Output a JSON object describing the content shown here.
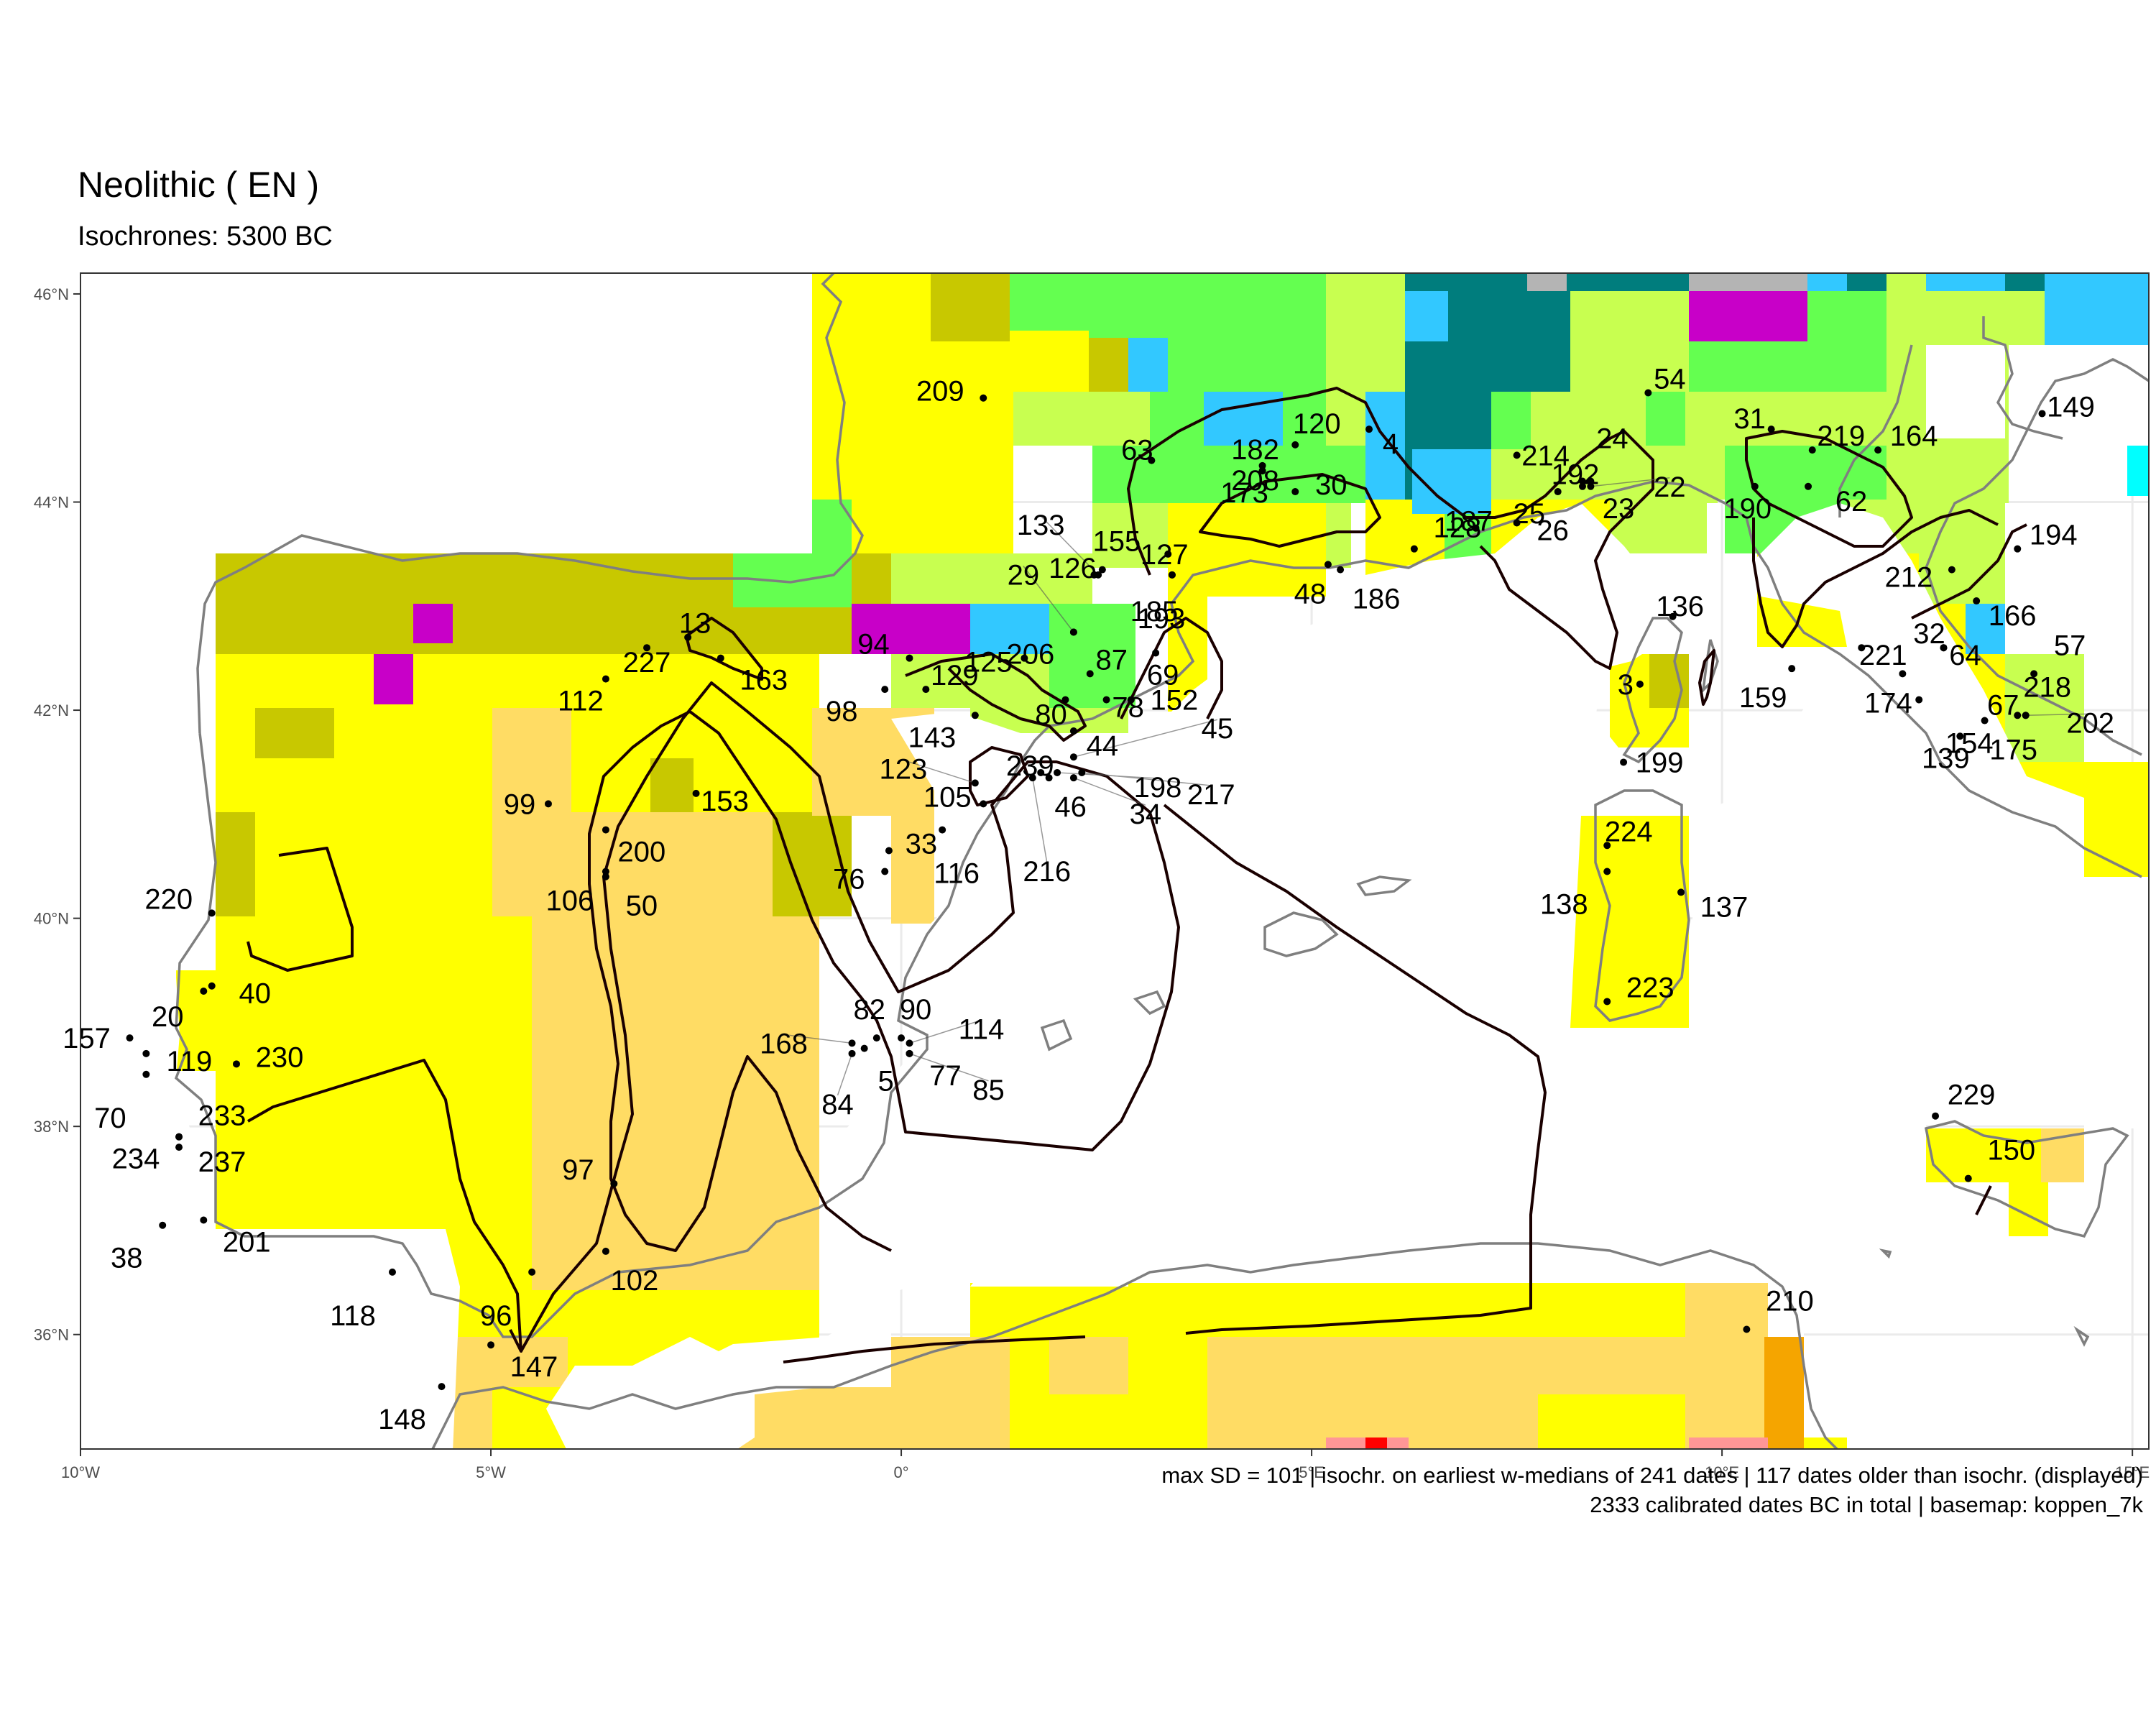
{
  "title": "Neolithic ( EN )",
  "subtitle": "Isochrones: 5300 BC",
  "caption": {
    "line1": "max SD = 101 | isochr. on earliest w-medians of 241 dates | 117 dates older than isochr. (displayed)",
    "line2": "2333 calibrated dates BC in total | basemap: koppen_7k"
  },
  "map": {
    "lon_range": [
      -10.0,
      15.2
    ],
    "lat_range": [
      34.9,
      46.2
    ],
    "x_ticks": [
      {
        "value": -10,
        "label": "10°W"
      },
      {
        "value": -5,
        "label": "5°W"
      },
      {
        "value": 0,
        "label": "0°"
      },
      {
        "value": 5,
        "label": "5°E"
      },
      {
        "value": 10,
        "label": "10°E"
      },
      {
        "value": 15,
        "label": "15°E"
      }
    ],
    "y_ticks": [
      {
        "value": 36,
        "label": "36°N"
      },
      {
        "value": 38,
        "label": "38°N"
      },
      {
        "value": 40,
        "label": "40°N"
      },
      {
        "value": 42,
        "label": "42°N"
      },
      {
        "value": 44,
        "label": "44°N"
      },
      {
        "value": 46,
        "label": "46°N"
      }
    ],
    "colors": {
      "background": "#ffffff",
      "panel_border": "#333333",
      "grid": "#ebebeb",
      "coastline": "#7f7f7f",
      "isochrone": "#1a0000",
      "point": "#000000",
      "label": "#000000"
    },
    "climate_colors": {
      "yellow": "#ffff00",
      "olive": "#c8c800",
      "wheat": "#ffdc64",
      "orange": "#f5a500",
      "light_green": "#c8ff50",
      "green": "#64ff50",
      "sky_blue": "#32c8ff",
      "teal": "#007d7d",
      "magenta": "#c800c8",
      "grey": "#b4b4b4",
      "red": "#ff0000",
      "pink": "#ff9696",
      "cyan": "#00ffff"
    },
    "sites": [
      {
        "id": "209",
        "lon": 1.0,
        "lat": 45.0
      },
      {
        "id": "54",
        "lon": 9.1,
        "lat": 45.05
      },
      {
        "id": "149",
        "lon": 13.9,
        "lat": 44.85
      },
      {
        "id": "31",
        "lon": 10.6,
        "lat": 44.7
      },
      {
        "id": "219",
        "lon": 11.1,
        "lat": 44.5
      },
      {
        "id": "164",
        "lon": 11.9,
        "lat": 44.5
      },
      {
        "id": "63",
        "lon": 3.05,
        "lat": 44.4
      },
      {
        "id": "182",
        "lon": 4.4,
        "lat": 44.3
      },
      {
        "id": "120",
        "lon": 4.8,
        "lat": 44.55
      },
      {
        "id": "4",
        "lon": 5.7,
        "lat": 44.7
      },
      {
        "id": "214",
        "lon": 7.5,
        "lat": 44.45
      },
      {
        "id": "24",
        "lon": 8.4,
        "lat": 44.2
      },
      {
        "id": "192",
        "lon": 8.3,
        "lat": 44.2
      },
      {
        "id": "22",
        "lon": 8.4,
        "lat": 44.15
      },
      {
        "id": "208",
        "lon": 4.4,
        "lat": 44.35
      },
      {
        "id": "30",
        "lon": 4.8,
        "lat": 44.1
      },
      {
        "id": "173",
        "lon": 4.4,
        "lat": 44.3
      },
      {
        "id": "25",
        "lon": 8.0,
        "lat": 44.1
      },
      {
        "id": "23",
        "lon": 8.3,
        "lat": 44.15
      },
      {
        "id": "190",
        "lon": 10.4,
        "lat": 44.15
      },
      {
        "id": "62",
        "lon": 11.05,
        "lat": 44.15
      },
      {
        "id": "133",
        "lon": 2.4,
        "lat": 43.3
      },
      {
        "id": "155",
        "lon": 2.45,
        "lat": 43.35
      },
      {
        "id": "126",
        "lon": 2.35,
        "lat": 43.3
      },
      {
        "id": "127",
        "lon": 3.25,
        "lat": 43.5
      },
      {
        "id": "128",
        "lon": 6.25,
        "lat": 43.55
      },
      {
        "id": "26",
        "lon": 7.5,
        "lat": 43.8
      },
      {
        "id": "187",
        "lon": 7.0,
        "lat": 43.75
      },
      {
        "id": "194",
        "lon": 13.6,
        "lat": 43.55
      },
      {
        "id": "212",
        "lon": 12.8,
        "lat": 43.35
      },
      {
        "id": "48",
        "lon": 5.2,
        "lat": 43.4
      },
      {
        "id": "186",
        "lon": 5.35,
        "lat": 43.35
      },
      {
        "id": "185",
        "lon": 3.3,
        "lat": 43.3
      },
      {
        "id": "193",
        "lon": 3.3,
        "lat": 43.3
      },
      {
        "id": "166",
        "lon": 13.1,
        "lat": 43.05
      },
      {
        "id": "29",
        "lon": 2.1,
        "lat": 42.75
      },
      {
        "id": "206",
        "lon": 2.1,
        "lat": 42.75
      },
      {
        "id": "125",
        "lon": 1.5,
        "lat": 42.5
      },
      {
        "id": "136",
        "lon": 9.4,
        "lat": 42.9
      },
      {
        "id": "13",
        "lon": -2.6,
        "lat": 42.7
      },
      {
        "id": "227",
        "lon": -3.1,
        "lat": 42.6
      },
      {
        "id": "163",
        "lon": -2.2,
        "lat": 42.5
      },
      {
        "id": "94",
        "lon": 0.1,
        "lat": 42.5
      },
      {
        "id": "69",
        "lon": 3.1,
        "lat": 42.55
      },
      {
        "id": "221",
        "lon": 11.7,
        "lat": 42.6
      },
      {
        "id": "32",
        "lon": 12.7,
        "lat": 42.6
      },
      {
        "id": "64",
        "lon": 12.7,
        "lat": 42.6
      },
      {
        "id": "57",
        "lon": 13.8,
        "lat": 42.35
      },
      {
        "id": "112",
        "lon": -3.6,
        "lat": 42.3
      },
      {
        "id": "98",
        "lon": -0.2,
        "lat": 42.2
      },
      {
        "id": "129",
        "lon": 0.3,
        "lat": 42.2
      },
      {
        "id": "87",
        "lon": 2.3,
        "lat": 42.35
      },
      {
        "id": "152",
        "lon": 2.8,
        "lat": 42.1
      },
      {
        "id": "78",
        "lon": 2.5,
        "lat": 42.1
      },
      {
        "id": "159",
        "lon": 10.85,
        "lat": 42.4
      },
      {
        "id": "174",
        "lon": 12.2,
        "lat": 42.35
      },
      {
        "id": "67",
        "lon": 13.6,
        "lat": 41.95
      },
      {
        "id": "218",
        "lon": 13.7,
        "lat": 41.95
      },
      {
        "id": "202",
        "lon": 13.7,
        "lat": 41.95
      },
      {
        "id": "3",
        "lon": 9.0,
        "lat": 42.25
      },
      {
        "id": "80",
        "lon": 2.0,
        "lat": 42.1
      },
      {
        "id": "143",
        "lon": 0.9,
        "lat": 41.95
      },
      {
        "id": "154",
        "lon": 12.4,
        "lat": 42.1
      },
      {
        "id": "175",
        "lon": 13.2,
        "lat": 41.9
      },
      {
        "id": "139",
        "lon": 12.9,
        "lat": 41.75
      },
      {
        "id": "44",
        "lon": 2.1,
        "lat": 41.8
      },
      {
        "id": "45",
        "lon": 2.1,
        "lat": 41.55
      },
      {
        "id": "199",
        "lon": 8.8,
        "lat": 41.5
      },
      {
        "id": "123",
        "lon": 0.9,
        "lat": 41.3
      },
      {
        "id": "239",
        "lon": 1.7,
        "lat": 41.4
      },
      {
        "id": "153",
        "lon": -2.5,
        "lat": 41.2
      },
      {
        "id": "198",
        "lon": 1.9,
        "lat": 41.4
      },
      {
        "id": "46",
        "lon": 1.8,
        "lat": 41.35
      },
      {
        "id": "105",
        "lon": 1.0,
        "lat": 41.1
      },
      {
        "id": "99",
        "lon": -4.3,
        "lat": 41.1
      },
      {
        "id": "200",
        "lon": -3.6,
        "lat": 40.85
      },
      {
        "id": "116",
        "lon": 0.5,
        "lat": 40.85
      },
      {
        "id": "34",
        "lon": 2.1,
        "lat": 41.35
      },
      {
        "id": "217",
        "lon": 2.2,
        "lat": 41.4
      },
      {
        "id": "216",
        "lon": 1.6,
        "lat": 41.35
      },
      {
        "id": "224",
        "lon": 8.6,
        "lat": 40.7
      },
      {
        "id": "106",
        "lon": -3.6,
        "lat": 40.45
      },
      {
        "id": "50",
        "lon": -3.6,
        "lat": 40.4
      },
      {
        "id": "33",
        "lon": -0.15,
        "lat": 40.65
      },
      {
        "id": "76",
        "lon": -0.2,
        "lat": 40.45
      },
      {
        "id": "138",
        "lon": 8.6,
        "lat": 40.45
      },
      {
        "id": "137",
        "lon": 9.5,
        "lat": 40.25
      },
      {
        "id": "220",
        "lon": -8.4,
        "lat": 40.05
      },
      {
        "id": "40",
        "lon": -8.4,
        "lat": 39.35
      },
      {
        "id": "20",
        "lon": -8.5,
        "lat": 39.3
      },
      {
        "id": "223",
        "lon": 8.6,
        "lat": 39.2
      },
      {
        "id": "157",
        "lon": -9.4,
        "lat": 38.85
      },
      {
        "id": "119",
        "lon": -9.2,
        "lat": 38.7
      },
      {
        "id": "230",
        "lon": -8.1,
        "lat": 38.6
      },
      {
        "id": "82",
        "lon": -0.3,
        "lat": 38.85
      },
      {
        "id": "90",
        "lon": 0.0,
        "lat": 38.85
      },
      {
        "id": "114",
        "lon": 0.1,
        "lat": 38.8
      },
      {
        "id": "168",
        "lon": -0.6,
        "lat": 38.8
      },
      {
        "id": "5",
        "lon": -0.45,
        "lat": 38.75
      },
      {
        "id": "77",
        "lon": 0.1,
        "lat": 38.7
      },
      {
        "id": "85",
        "lon": 0.1,
        "lat": 38.7
      },
      {
        "id": "84",
        "lon": -0.6,
        "lat": 38.7
      },
      {
        "id": "70",
        "lon": -9.2,
        "lat": 38.5
      },
      {
        "id": "233",
        "lon": -8.8,
        "lat": 37.9
      },
      {
        "id": "234",
        "lon": -8.8,
        "lat": 37.9
      },
      {
        "id": "237",
        "lon": -8.8,
        "lat": 37.8
      },
      {
        "id": "229",
        "lon": 12.6,
        "lat": 38.1
      },
      {
        "id": "150",
        "lon": 13.0,
        "lat": 37.5
      },
      {
        "id": "97",
        "lon": -3.5,
        "lat": 37.45
      },
      {
        "id": "102",
        "lon": -3.6,
        "lat": 36.8
      },
      {
        "id": "38",
        "lon": -9.0,
        "lat": 37.05
      },
      {
        "id": "201",
        "lon": -8.5,
        "lat": 37.1
      },
      {
        "id": "96",
        "lon": -4.5,
        "lat": 36.6
      },
      {
        "id": "118",
        "lon": -6.2,
        "lat": 36.6
      },
      {
        "id": "210",
        "lon": 10.3,
        "lat": 36.05
      },
      {
        "id": "147",
        "lon": -5.0,
        "lat": 35.9
      },
      {
        "id": "148",
        "lon": -5.6,
        "lat": 35.5
      }
    ]
  }
}
